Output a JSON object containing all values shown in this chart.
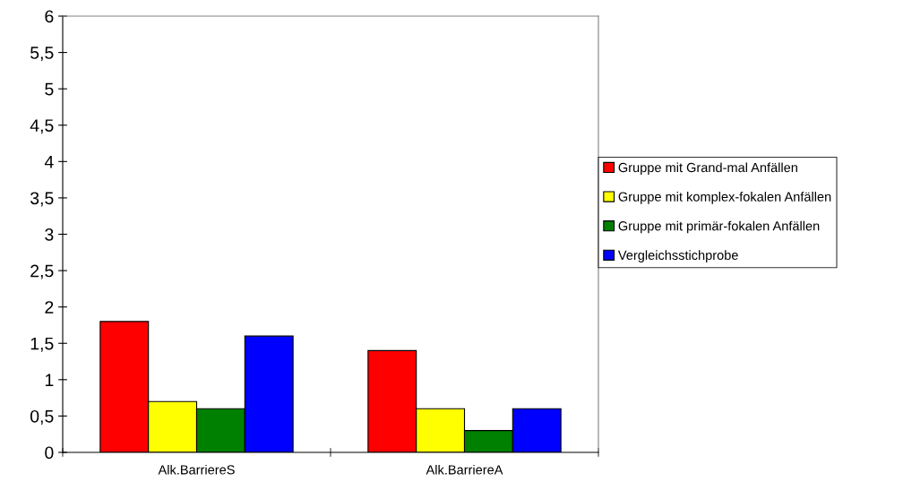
{
  "chart_data": {
    "type": "bar",
    "categories": [
      "Alk.BarriereS",
      "Alk.BarriereA"
    ],
    "series": [
      {
        "name": "Gruppe mit Grand-mal Anfällen",
        "color": "#ff0000",
        "values": [
          1.8,
          1.4
        ]
      },
      {
        "name": "Gruppe mit komplex-fokalen Anfällen",
        "color": "#ffff00",
        "values": [
          0.7,
          0.6
        ]
      },
      {
        "name": "Gruppe mit primär-fokalen Anfällen",
        "color": "#008000",
        "values": [
          0.6,
          0.3
        ]
      },
      {
        "name": "Vergleichsstichprobe",
        "color": "#0000ff",
        "values": [
          1.6,
          0.6
        ]
      }
    ],
    "ylim": [
      0,
      6
    ],
    "yticks": [
      0,
      {
        "value": 0.5,
        "label": "0,5"
      },
      1,
      {
        "value": 1.5,
        "label": "1,5"
      },
      2,
      {
        "value": 2.5,
        "label": "2,5"
      },
      3,
      {
        "value": 3.5,
        "label": "3,5"
      },
      4,
      {
        "value": 4.5,
        "label": "4,5"
      },
      5,
      {
        "value": 5.5,
        "label": "5,5"
      },
      6
    ],
    "grid": false,
    "legend": "right"
  }
}
